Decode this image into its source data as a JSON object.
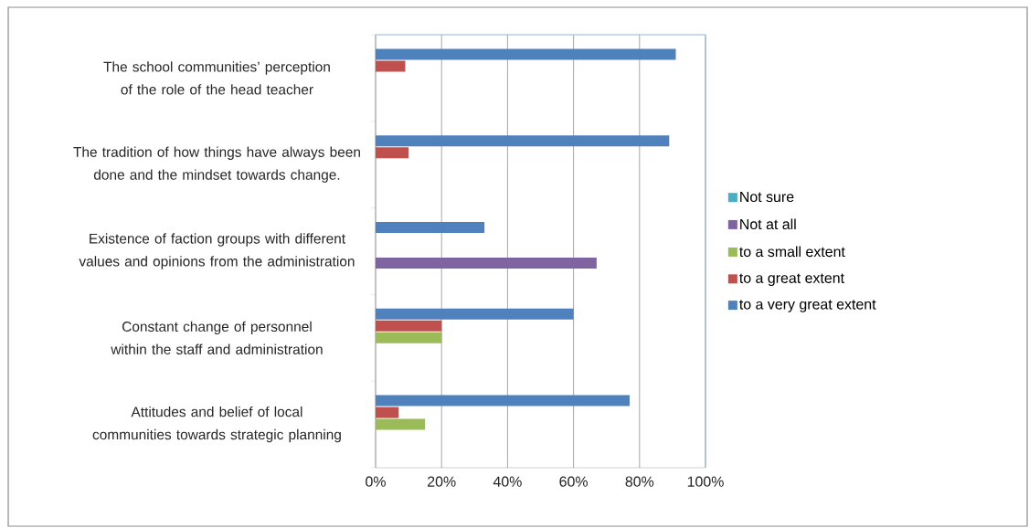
{
  "chart_data": {
    "type": "bar",
    "orientation": "horizontal",
    "categories": [
      "The school communities’ perception of the role of the head teacher",
      "The tradition of how things have always been done and the mindset towards change.",
      "Existence of faction groups with different values and opinions from the administration",
      "Constant change of personnel within the staff and administration",
      "Attitudes and belief of local communities towards strategic planning"
    ],
    "series": [
      {
        "name": "Not sure",
        "color": "#4bacc6",
        "values": [
          0,
          0,
          0,
          0,
          0
        ]
      },
      {
        "name": "Not at all",
        "color": "#8064a2",
        "values": [
          0,
          0,
          67,
          0,
          0
        ]
      },
      {
        "name": "to a small extent",
        "color": "#9bbb59",
        "values": [
          0,
          0,
          0,
          20,
          15
        ]
      },
      {
        "name": "to a great extent",
        "color": "#c0504d",
        "values": [
          9,
          10,
          0,
          20,
          7
        ]
      },
      {
        "name": "to a very great extent",
        "color": "#4f81bd",
        "values": [
          91,
          89,
          33,
          60,
          77
        ]
      }
    ],
    "xlim": [
      0,
      100
    ],
    "xticks": [
      {
        "value": 0,
        "label": "0%"
      },
      {
        "value": 20,
        "label": "20%"
      },
      {
        "value": 40,
        "label": "40%"
      },
      {
        "value": 60,
        "label": "60%"
      },
      {
        "value": 80,
        "label": "80%"
      },
      {
        "value": 100,
        "label": "100%"
      }
    ],
    "grid": "x",
    "legend": "right"
  }
}
